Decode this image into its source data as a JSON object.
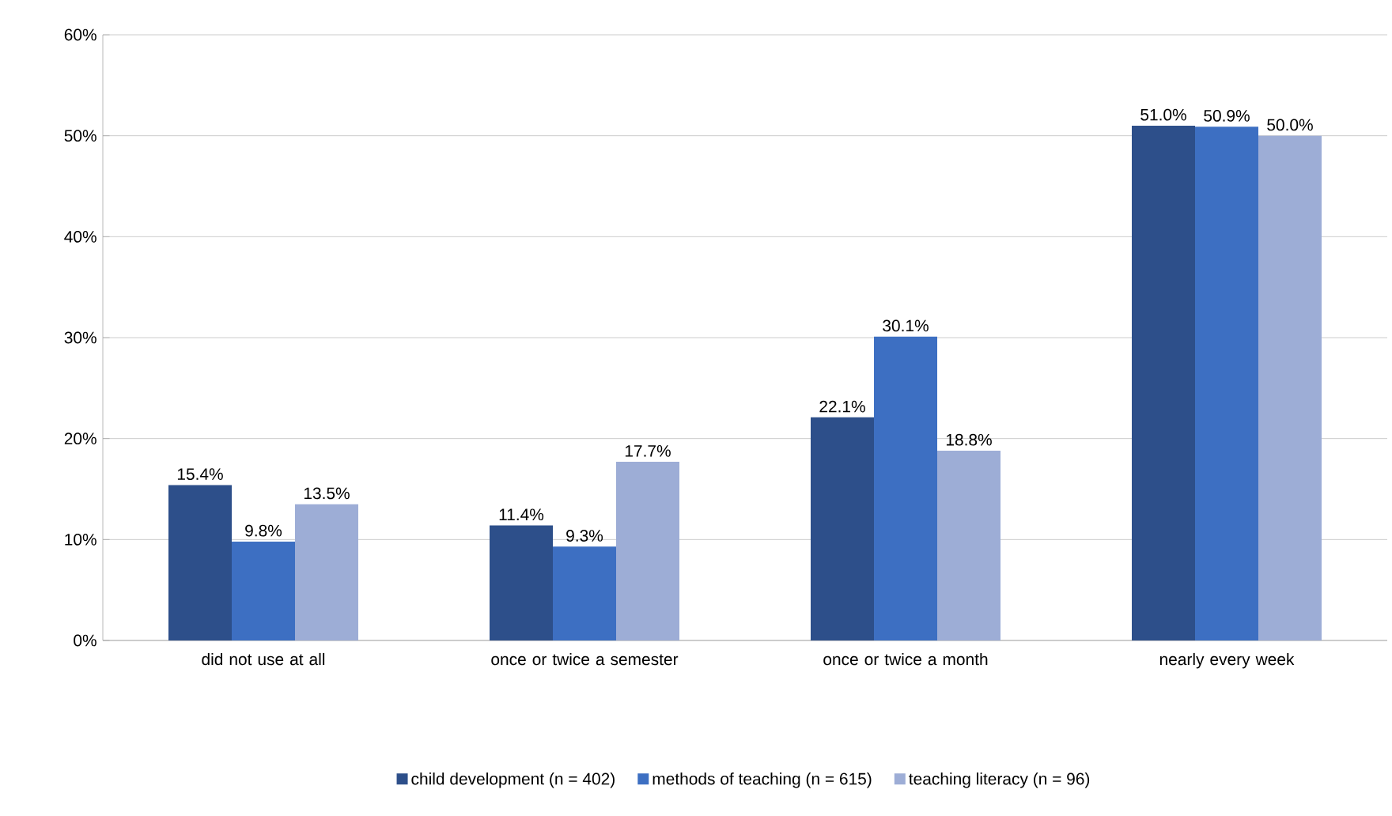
{
  "chart_data": {
    "type": "bar",
    "categories": [
      "did not use at all",
      "once or twice a semester",
      "once or twice a month",
      "nearly every week"
    ],
    "series": [
      {
        "name": "child development (n = 402)",
        "color": "#2d4f8a",
        "values": [
          15.4,
          11.4,
          22.1,
          51.0
        ],
        "value_labels": [
          "15.4%",
          "11.4%",
          "22.1%",
          "51.0%"
        ]
      },
      {
        "name": "methods of teaching (n = 615)",
        "color": "#3d6fc2",
        "values": [
          9.8,
          9.3,
          30.1,
          50.9
        ],
        "value_labels": [
          "9.8%",
          "9.3%",
          "30.1%",
          "50.9%"
        ]
      },
      {
        "name": "teaching literacy (n = 96)",
        "color": "#9dadd6",
        "values": [
          13.5,
          17.7,
          18.8,
          50.0
        ],
        "value_labels": [
          "13.5%",
          "17.7%",
          "18.8%",
          "50.0%"
        ]
      }
    ],
    "ylim": [
      0,
      60
    ],
    "yticks": [
      {
        "value": 0,
        "label": "0%"
      },
      {
        "value": 10,
        "label": "10%"
      },
      {
        "value": 20,
        "label": "20%"
      },
      {
        "value": 30,
        "label": "30%"
      },
      {
        "value": 40,
        "label": "40%"
      },
      {
        "value": 50,
        "label": "50%"
      },
      {
        "value": 60,
        "label": "60%"
      }
    ],
    "grid": "y",
    "legend": "bottom"
  }
}
